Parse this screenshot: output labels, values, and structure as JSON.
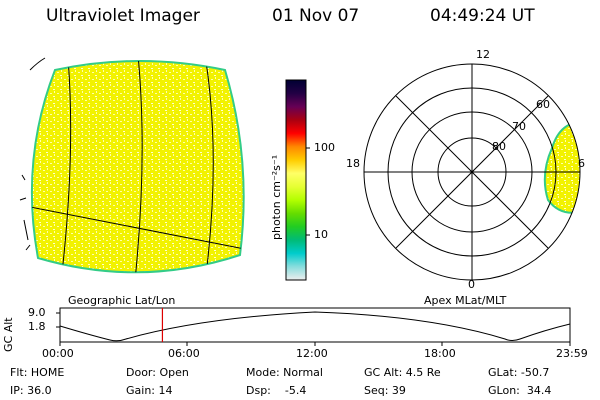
{
  "header": {
    "title": "Ultraviolet Imager",
    "date": "01 Nov 07",
    "time": "04:49:24 UT"
  },
  "colors": {
    "disk_fill": "#f2f200",
    "disk_edge": "#33cc88",
    "speckle": "#ffffaa"
  },
  "left_panel": {
    "caption": "Geographic Lat/Lon"
  },
  "colorbar": {
    "unit": "photon cm⁻²s⁻¹",
    "ticks": [
      "100",
      "10"
    ],
    "stops": [
      "#000033",
      "#220044",
      "#660055",
      "#aa0011",
      "#ff0000",
      "#ff8800",
      "#ffcc00",
      "#ffff66",
      "#e6ff33",
      "#b3ff00",
      "#66dd00",
      "#22cc22",
      "#00bb77",
      "#00cccc",
      "#88dddd",
      "#eeeeee"
    ]
  },
  "polar_panel": {
    "caption": "Apex MLat/MLT",
    "mlt_labels": {
      "top": "12",
      "left": "18",
      "right": "6",
      "bottom": "0"
    },
    "lat_labels": [
      "60",
      "70",
      "80"
    ]
  },
  "alt_strip": {
    "axis_label": "GC Alt",
    "y_ticks": [
      "9.0",
      "1.8"
    ],
    "x_ticks": [
      "00:00",
      "06:00",
      "12:00",
      "18:00",
      "23:59"
    ],
    "current_time_hours": 4.82
  },
  "info": {
    "filter": "Flt: HOME",
    "door": "Door: Open",
    "mode": "Mode: Normal",
    "gc_alt": "GC Alt: 4.5 Re",
    "glat": "GLat: -50.7",
    "ip": "IP: 36.0",
    "gain": "Gain: 14",
    "dsp": "Dsp:    -5.4",
    "seq": "Seq: 39",
    "glon": "GLon:  34.4"
  }
}
